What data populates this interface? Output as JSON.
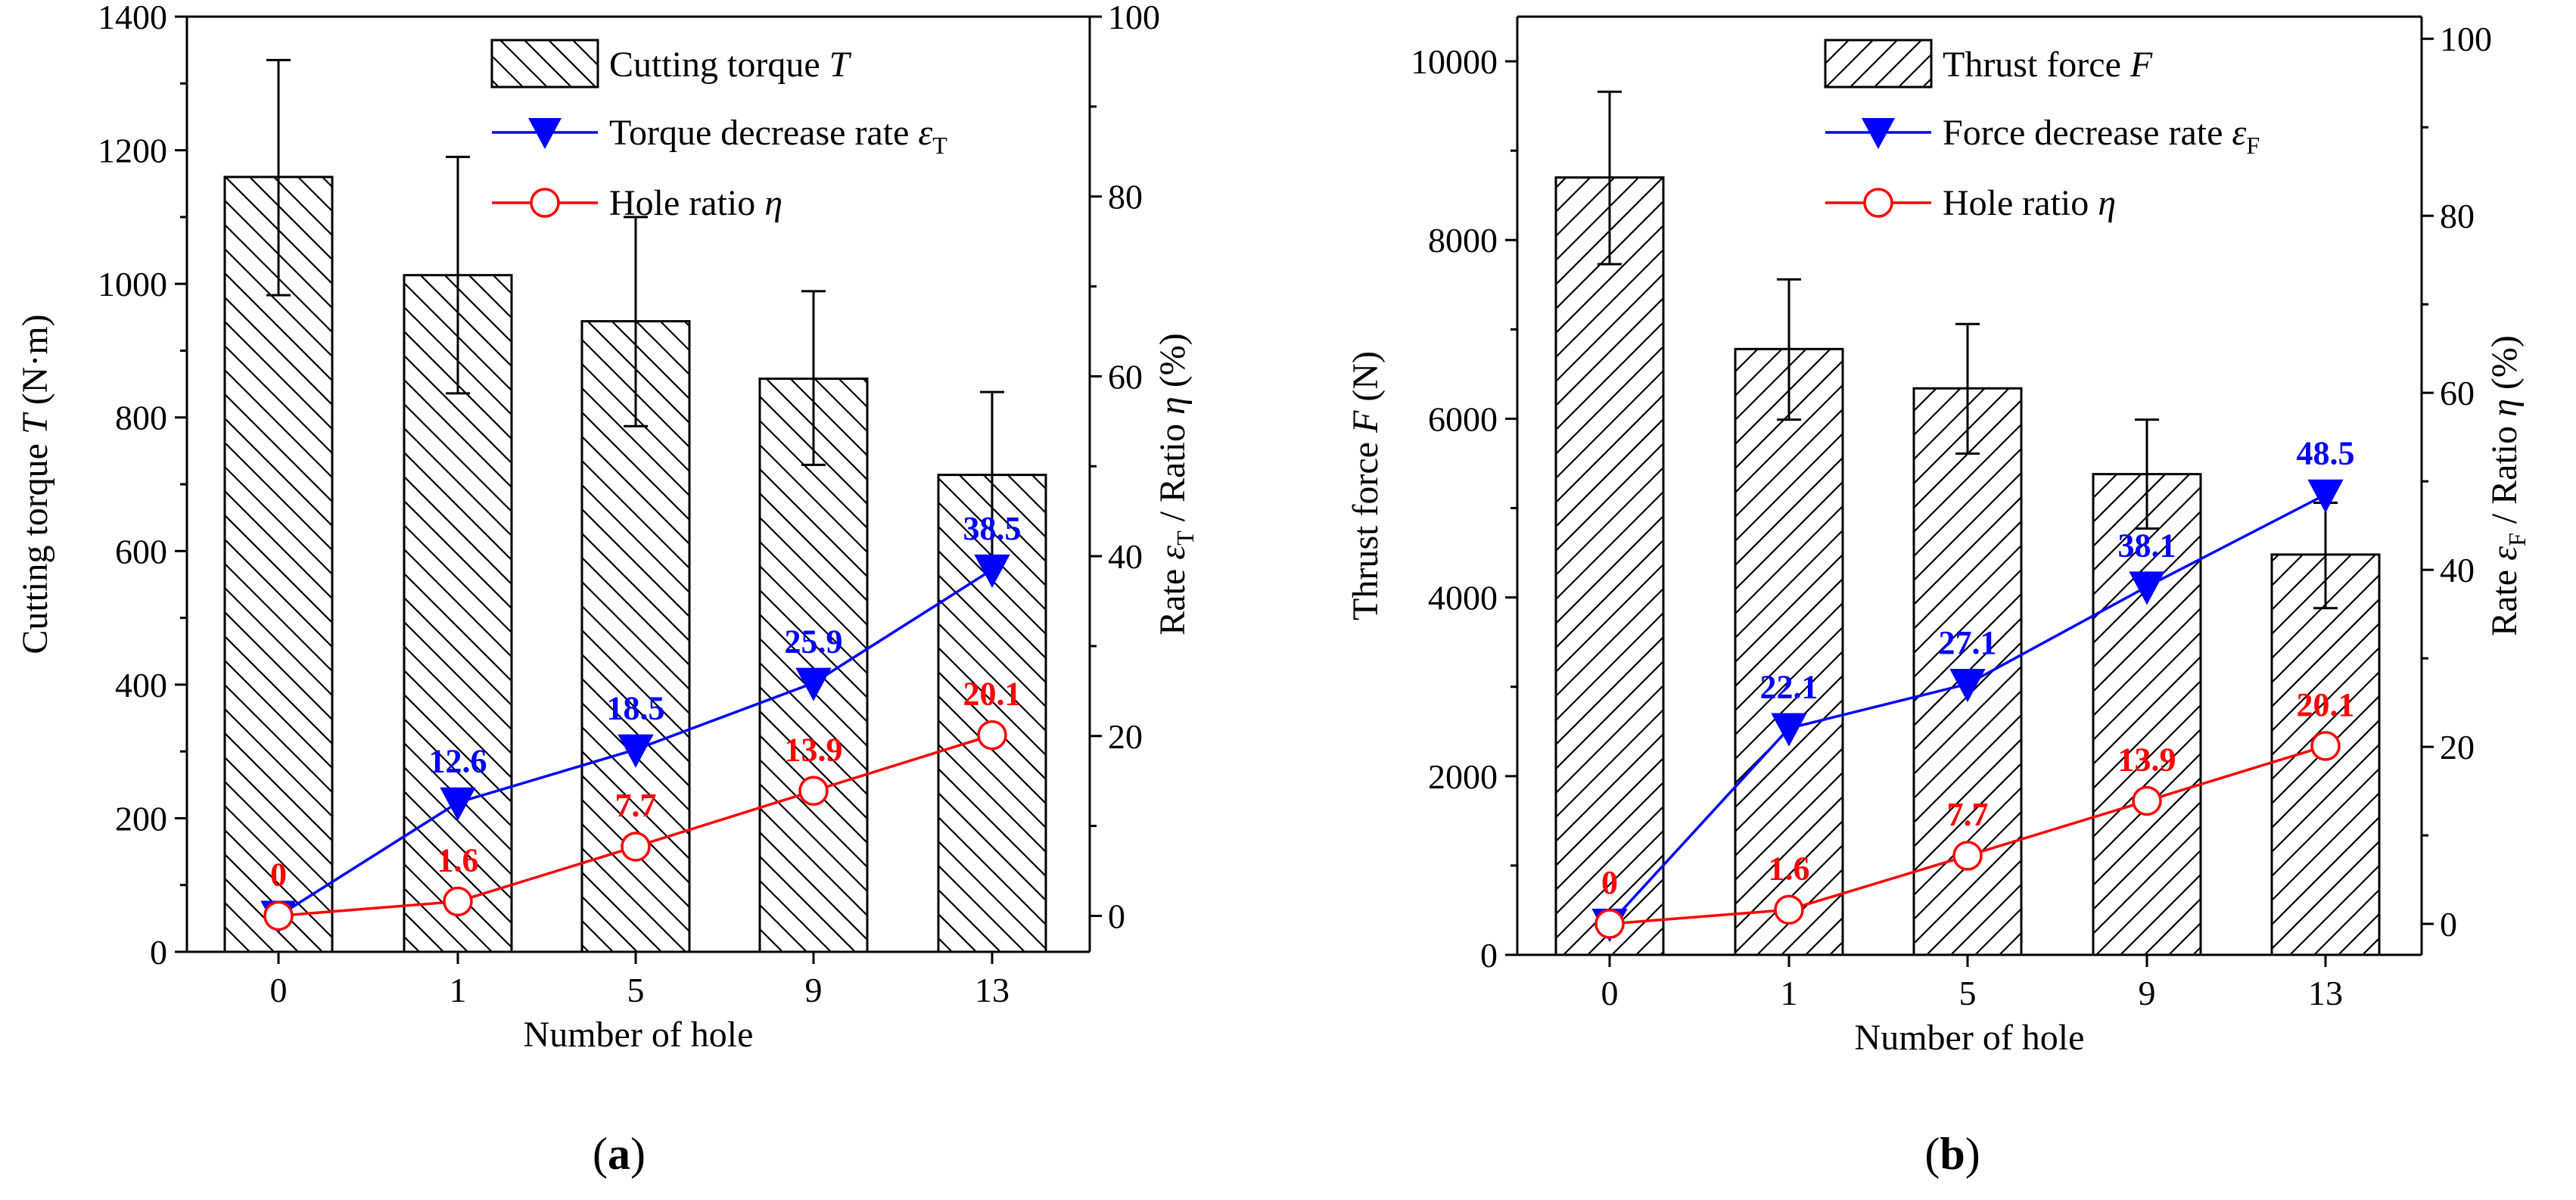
{
  "colors": {
    "rate_series": "#0000ff",
    "hole_series": "#ff0000",
    "bar_fill": "#ffffff",
    "bar_stroke": "#000000"
  },
  "chart_data": [
    {
      "type": "bar",
      "panel_label": "a",
      "categories": [
        "0",
        "1",
        "5",
        "9",
        "13"
      ],
      "xlabel": "Number of hole",
      "ylabel": {
        "pre": "Cutting torque ",
        "sym": "T",
        "post": " (N·m)"
      },
      "y2label": {
        "pre": "Rate ",
        "sym": "ε",
        "sub": "T",
        "mid": " / Ratio ",
        "sym2": "η",
        "post": " (%)"
      },
      "ylim": [
        0,
        1400
      ],
      "yticks": [
        0,
        200,
        400,
        600,
        800,
        1000,
        1200,
        1400
      ],
      "y2lim": [
        -4,
        100
      ],
      "y2ticks": [
        0,
        20,
        40,
        60,
        80,
        100
      ],
      "hatch": "backslash",
      "bars": {
        "name": {
          "pre": "Cutting torque ",
          "sym": "T"
        },
        "values": [
          1160,
          1013,
          944,
          858,
          714
        ],
        "err_low": [
          983,
          836,
          787,
          729,
          591
        ],
        "err_high": [
          1335,
          1190,
          1100,
          989,
          838
        ]
      },
      "series": [
        {
          "key": "rate",
          "name": {
            "pre": "Torque decrease rate ",
            "sym": "ε",
            "sub": "T"
          },
          "marker": "triangle-down",
          "color": "#0000ff",
          "values": [
            0,
            12.6,
            18.5,
            25.9,
            38.5
          ],
          "labels": [
            "",
            "12.6",
            "18.5",
            "25.9",
            "38.5"
          ]
        },
        {
          "key": "hole",
          "name": {
            "pre": "Hole ratio ",
            "sym": "η"
          },
          "marker": "circle-open",
          "color": "#ff0000",
          "values": [
            0,
            1.6,
            7.7,
            13.9,
            20.1
          ],
          "labels": [
            "0",
            "1.6",
            "7.7",
            "13.9",
            "20.1"
          ]
        }
      ]
    },
    {
      "type": "bar",
      "panel_label": "b",
      "categories": [
        "0",
        "1",
        "5",
        "9",
        "13"
      ],
      "xlabel": "Number of hole",
      "ylabel": {
        "pre": "Thrust force ",
        "sym": "F",
        "post": " (N)"
      },
      "y2label": {
        "pre": "Rate ",
        "sym": "ε",
        "sub": "F",
        "mid": " / Ratio ",
        "sym2": "η",
        "post": " (%)"
      },
      "ylim": [
        0,
        10500
      ],
      "yticks": [
        0,
        2000,
        4000,
        6000,
        8000,
        10000
      ],
      "y2lim": [
        -3.5,
        102.5
      ],
      "y2ticks": [
        0,
        20,
        40,
        60,
        80,
        100
      ],
      "hatch": "slash",
      "bars": {
        "name": {
          "pre": "Thrust force ",
          "sym": "F"
        },
        "values": [
          8700,
          6780,
          6340,
          5380,
          4480
        ],
        "err_low": [
          7730,
          5990,
          5610,
          4770,
          3880
        ],
        "err_high": [
          9660,
          7560,
          7060,
          5990,
          5060
        ]
      },
      "series": [
        {
          "key": "rate",
          "name": {
            "pre": "Force decrease rate ",
            "sym": "ε",
            "sub": "F"
          },
          "marker": "triangle-down",
          "color": "#0000ff",
          "values": [
            0,
            22.1,
            27.1,
            38.1,
            48.5
          ],
          "labels": [
            "",
            "22.1",
            "27.1",
            "38.1",
            "48.5"
          ]
        },
        {
          "key": "hole",
          "name": {
            "pre": "Hole ratio ",
            "sym": "η"
          },
          "marker": "circle-open",
          "color": "#ff0000",
          "values": [
            0,
            1.6,
            7.7,
            13.9,
            20.1
          ],
          "labels": [
            "0",
            "1.6",
            "7.7",
            "13.9",
            "20.1"
          ]
        }
      ]
    }
  ]
}
